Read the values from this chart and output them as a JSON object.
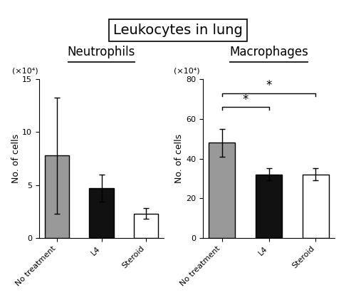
{
  "title": "Leukocytes in lung",
  "left_subtitle": "Neutrophils",
  "right_subtitle": "Macrophages",
  "ylabel": "No. of cells",
  "xticklabels": [
    "No treatment",
    "L4",
    "Steroid"
  ],
  "unit_label": "(×10⁴)",
  "neutrophils_values": [
    7.8,
    4.7,
    2.3
  ],
  "neutrophils_errors": [
    5.5,
    1.3,
    0.5
  ],
  "neutrophils_colors": [
    "#999999",
    "#111111",
    "#ffffff"
  ],
  "neutrophils_ylim": [
    0,
    15
  ],
  "neutrophils_yticks": [
    0,
    5,
    10,
    15
  ],
  "macrophages_values": [
    48,
    32,
    32
  ],
  "macrophages_errors": [
    7,
    3,
    3
  ],
  "macrophages_colors": [
    "#999999",
    "#111111",
    "#ffffff"
  ],
  "macrophages_ylim": [
    0,
    80
  ],
  "macrophages_yticks": [
    0,
    20,
    40,
    60,
    80
  ],
  "bar_width": 0.55,
  "background_color": "#ffffff",
  "title_fontsize": 14,
  "subtitle_fontsize": 12,
  "tick_fontsize": 8,
  "ylabel_fontsize": 9,
  "unit_fontsize": 8
}
